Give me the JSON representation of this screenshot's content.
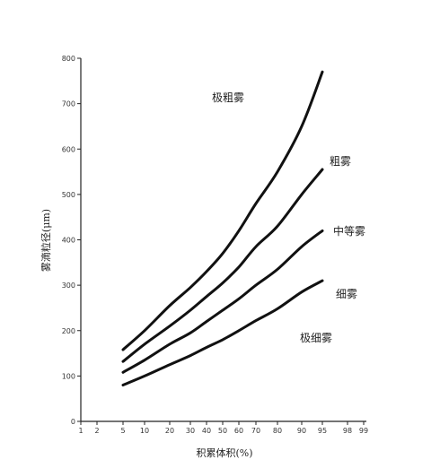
{
  "chart_data": {
    "type": "line",
    "xlabel": "积累体积(%)",
    "ylabel": "雾滴粒径(μm)",
    "x_scale": "probability",
    "x_ticks": [
      "1",
      "2",
      "5",
      "10",
      "20",
      "30",
      "40",
      "50",
      "60",
      "70",
      "80",
      "90",
      "95",
      "98",
      "99"
    ],
    "y_ticks": [
      "0",
      "100",
      "200",
      "300",
      "400",
      "500",
      "600",
      "700",
      "800"
    ],
    "ylim": [
      0,
      800
    ],
    "grid": false,
    "x": [
      5,
      10,
      20,
      30,
      40,
      50,
      60,
      70,
      80,
      90,
      95
    ],
    "series": [
      {
        "values": [
          158,
          200,
          255,
          295,
          330,
          370,
          420,
          480,
          550,
          650,
          770
        ]
      },
      {
        "values": [
          132,
          170,
          210,
          245,
          275,
          305,
          340,
          385,
          430,
          500,
          555
        ]
      },
      {
        "values": [
          108,
          135,
          170,
          195,
          220,
          245,
          270,
          300,
          335,
          385,
          420
        ]
      },
      {
        "values": [
          80,
          100,
          125,
          145,
          163,
          180,
          200,
          222,
          248,
          285,
          310
        ]
      }
    ],
    "region_labels": [
      "极粗雾",
      "粗雾",
      "中等雾",
      "细雾",
      "极细雾"
    ]
  }
}
